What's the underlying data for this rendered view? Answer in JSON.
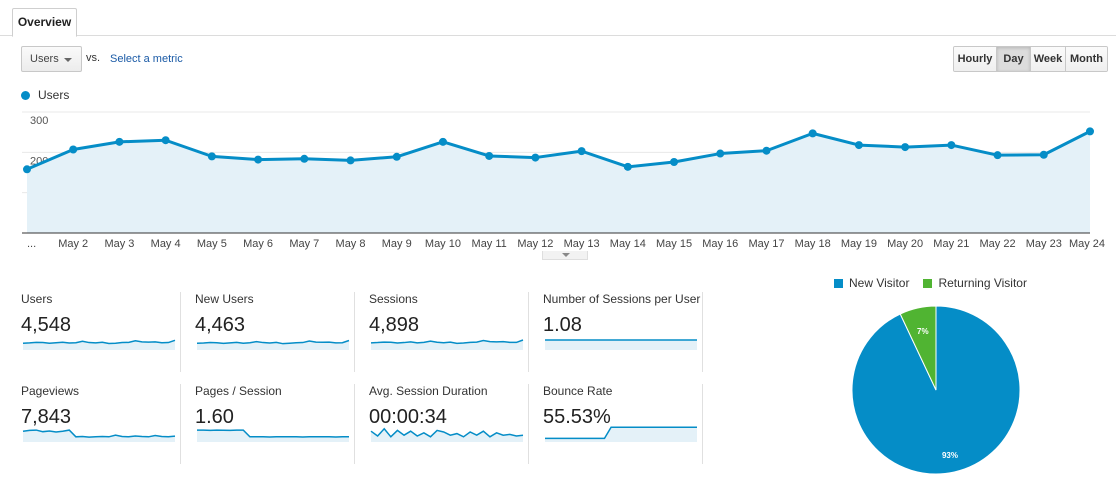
{
  "tabs": {
    "overview": "Overview"
  },
  "toolbar": {
    "metric_select": "Users",
    "vs_label": "vs.",
    "select_metric_link": "Select a metric",
    "granularity": [
      {
        "label": "Hourly",
        "active": false
      },
      {
        "label": "Day",
        "active": true
      },
      {
        "label": "Week",
        "active": false
      },
      {
        "label": "Month",
        "active": false
      }
    ]
  },
  "chart_data": {
    "type": "area",
    "legend": "Users",
    "color": "#058dc7",
    "fill": "#e4f1f8",
    "ylim": [
      0,
      300
    ],
    "yticks": [
      100,
      200,
      300
    ],
    "grid": true,
    "x_labels": [
      "...",
      "May 2",
      "May 3",
      "May 4",
      "May 5",
      "May 6",
      "May 7",
      "May 8",
      "May 9",
      "May 10",
      "May 11",
      "May 12",
      "May 13",
      "May 14",
      "May 15",
      "May 16",
      "May 17",
      "May 18",
      "May 19",
      "May 20",
      "May 21",
      "May 22",
      "May 23",
      "May 24"
    ],
    "values": [
      158,
      207,
      226,
      230,
      190,
      182,
      184,
      180,
      189,
      226,
      191,
      187,
      203,
      164,
      176,
      197,
      204,
      247,
      218,
      213,
      218,
      193,
      194,
      252
    ]
  },
  "metrics": [
    {
      "label": "Users",
      "value": "4,548",
      "spark": [
        0.3,
        0.32,
        0.35,
        0.34,
        0.3,
        0.33,
        0.36,
        0.31,
        0.33,
        0.42,
        0.34,
        0.32,
        0.36,
        0.28,
        0.3,
        0.34,
        0.35,
        0.45,
        0.38,
        0.37,
        0.38,
        0.33,
        0.34,
        0.48
      ]
    },
    {
      "label": "New Users",
      "value": "4,463",
      "spark": [
        0.3,
        0.31,
        0.34,
        0.33,
        0.29,
        0.32,
        0.35,
        0.3,
        0.33,
        0.4,
        0.34,
        0.31,
        0.35,
        0.27,
        0.3,
        0.33,
        0.34,
        0.44,
        0.37,
        0.36,
        0.37,
        0.32,
        0.33,
        0.47
      ]
    },
    {
      "label": "Sessions",
      "value": "4,898",
      "spark": [
        0.32,
        0.34,
        0.37,
        0.36,
        0.31,
        0.34,
        0.38,
        0.32,
        0.35,
        0.43,
        0.36,
        0.33,
        0.37,
        0.29,
        0.31,
        0.35,
        0.37,
        0.47,
        0.4,
        0.38,
        0.4,
        0.35,
        0.35,
        0.5
      ]
    },
    {
      "label": "Number of Sessions per User",
      "value": "1.08",
      "spark": [
        0.5,
        0.5,
        0.5,
        0.5,
        0.5,
        0.5,
        0.5,
        0.5,
        0.5,
        0.5,
        0.5,
        0.5,
        0.5,
        0.5,
        0.5,
        0.5,
        0.5,
        0.5,
        0.5,
        0.5,
        0.5,
        0.5,
        0.5,
        0.5
      ]
    },
    {
      "label": "Pageviews",
      "value": "7,843",
      "spark": [
        0.55,
        0.6,
        0.62,
        0.52,
        0.56,
        0.5,
        0.55,
        0.62,
        0.2,
        0.22,
        0.18,
        0.2,
        0.22,
        0.2,
        0.3,
        0.22,
        0.2,
        0.25,
        0.22,
        0.2,
        0.28,
        0.22,
        0.2,
        0.24
      ]
    },
    {
      "label": "Pages / Session",
      "value": "1.60",
      "spark": [
        0.62,
        0.62,
        0.6,
        0.62,
        0.61,
        0.6,
        0.62,
        0.62,
        0.2,
        0.2,
        0.2,
        0.19,
        0.2,
        0.2,
        0.2,
        0.2,
        0.19,
        0.2,
        0.2,
        0.2,
        0.2,
        0.19,
        0.2,
        0.2
      ]
    },
    {
      "label": "Avg. Session Duration",
      "value": "00:00:34",
      "spark": [
        0.55,
        0.25,
        0.7,
        0.2,
        0.6,
        0.3,
        0.55,
        0.25,
        0.45,
        0.2,
        0.6,
        0.5,
        0.3,
        0.4,
        0.2,
        0.5,
        0.3,
        0.55,
        0.2,
        0.45,
        0.3,
        0.35,
        0.25,
        0.3
      ]
    },
    {
      "label": "Bounce Rate",
      "value": "55.53%",
      "spark": [
        0.1,
        0.1,
        0.1,
        0.1,
        0.1,
        0.1,
        0.1,
        0.1,
        0.1,
        0.1,
        0.8,
        0.8,
        0.8,
        0.8,
        0.8,
        0.8,
        0.8,
        0.8,
        0.8,
        0.8,
        0.8,
        0.8,
        0.8,
        0.8
      ]
    }
  ],
  "pie": {
    "legend": [
      {
        "label": "New Visitor",
        "color": "#058dc7"
      },
      {
        "label": "Returning Visitor",
        "color": "#50b432"
      }
    ],
    "slices": [
      {
        "label": "93%",
        "value": 93,
        "color": "#058dc7"
      },
      {
        "label": "7%",
        "value": 7,
        "color": "#50b432"
      }
    ]
  }
}
